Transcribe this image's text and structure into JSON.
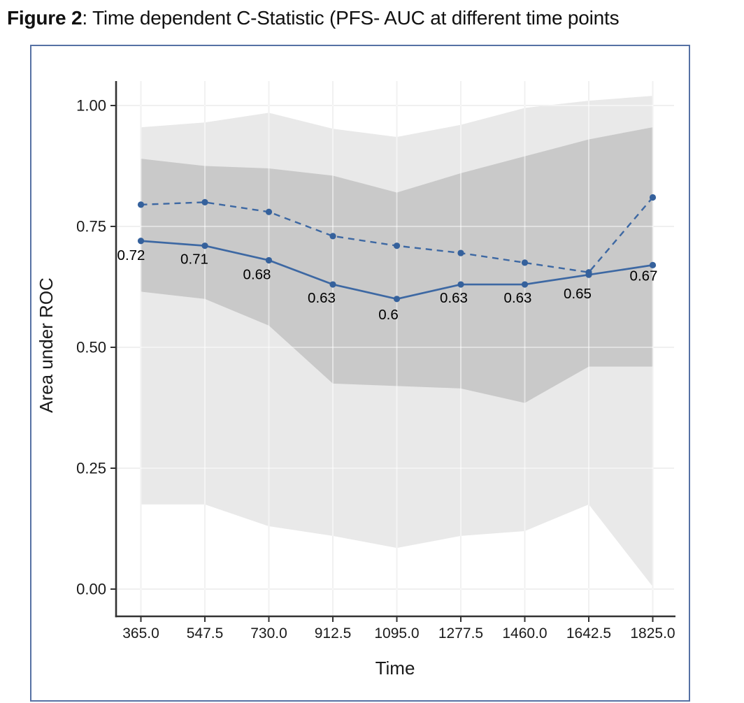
{
  "figure": {
    "caption": {
      "label": "Figure 2",
      "text": ": Time dependent C-Statistic (PFS- AUC at different time points"
    }
  },
  "chart_data": {
    "type": "line",
    "xlabel": "Time",
    "ylabel": "Area under ROC",
    "x": [
      365.0,
      547.5,
      730.0,
      912.5,
      1095.0,
      1277.5,
      1460.0,
      1642.5,
      1825.0
    ],
    "x_tick_labels": [
      "365.0",
      "547.5",
      "730.0",
      "912.5",
      "1095.0",
      "1277.5",
      "1460.0",
      "1642.5",
      "1825.0"
    ],
    "y_ticks": [
      0.0,
      0.25,
      0.5,
      0.75,
      1.0
    ],
    "y_tick_labels": [
      "0.00",
      "0.25",
      "0.50",
      "0.75",
      "1.00"
    ],
    "ylim": [
      0.0,
      1.05
    ],
    "grid": true,
    "legend": "none",
    "series": [
      {
        "id": "auc-solid",
        "line_style": "solid",
        "values": [
          0.72,
          0.71,
          0.68,
          0.63,
          0.6,
          0.63,
          0.63,
          0.65,
          0.67
        ],
        "point_labels": [
          "0.72",
          "0.71",
          "0.68",
          "0.63",
          "0.6",
          "0.63",
          "0.63",
          "0.65",
          "0.67"
        ]
      },
      {
        "id": "auc-dashed",
        "line_style": "dashed",
        "values": [
          0.795,
          0.8,
          0.78,
          0.73,
          0.71,
          0.695,
          0.675,
          0.655,
          0.81
        ],
        "point_labels": []
      }
    ],
    "bands": [
      {
        "id": "outer-ci",
        "fill": "#e9e9e9",
        "upper": [
          0.955,
          0.965,
          0.985,
          0.952,
          0.935,
          0.96,
          0.995,
          1.01,
          1.02
        ],
        "lower": [
          0.175,
          0.175,
          0.13,
          0.11,
          0.085,
          0.11,
          0.12,
          0.175,
          0.005
        ]
      },
      {
        "id": "inner-ci",
        "fill": "#c9c9c9",
        "upper": [
          0.89,
          0.875,
          0.87,
          0.855,
          0.82,
          0.86,
          0.895,
          0.93,
          0.955
        ],
        "lower": [
          0.615,
          0.6,
          0.545,
          0.425,
          0.42,
          0.415,
          0.385,
          0.46,
          0.46
        ]
      }
    ],
    "colors": {
      "line": "#3d68a3",
      "point": "#35619c",
      "frame": "#5671a4",
      "axis": "#333333",
      "gridline": "#e3e3e3",
      "label_text": "#1a1a1a"
    }
  }
}
